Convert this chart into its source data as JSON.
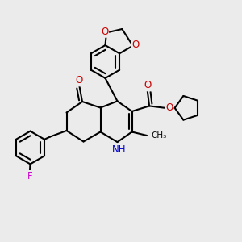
{
  "background_color": "#ebebeb",
  "bond_color": "#000000",
  "bond_width": 1.5,
  "dbo": 0.012,
  "atom_colors": {
    "O": "#cc0000",
    "N": "#0000cc",
    "F": "#cc00cc",
    "C": "#000000"
  },
  "fs": 8.5
}
